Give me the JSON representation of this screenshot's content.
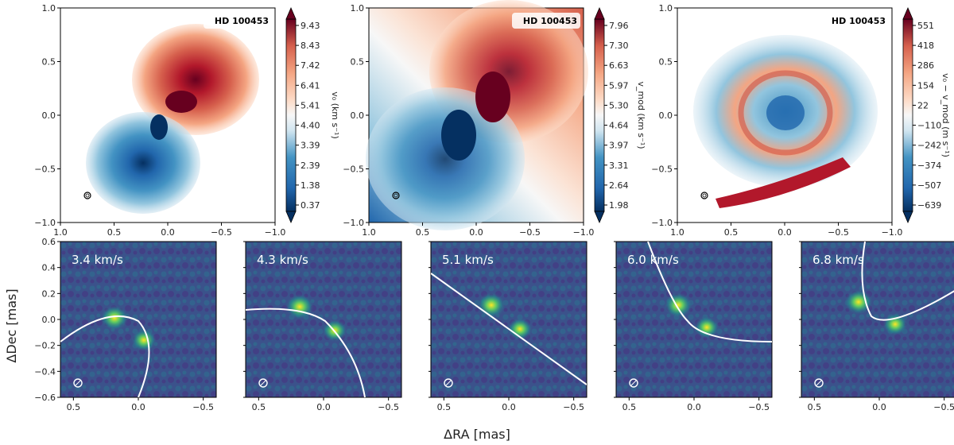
{
  "figure": {
    "xlabel": "ΔRA [mas]",
    "ylabel": "ΔDec [mas]"
  },
  "colors": {
    "diverging_low": "#053061",
    "diverging_mid": "#f7f7f7",
    "diverging_high": "#67001f",
    "viridis_low": "#440154",
    "viridis_mid": "#21918c",
    "viridis_high": "#fde725",
    "fit_curve": "#ffffff"
  },
  "chart_data": [
    {
      "type": "heatmap",
      "panel": "top-left",
      "badge": "HD 100453",
      "xlim": [
        1.0,
        -1.0
      ],
      "ylim": [
        -1.0,
        1.0
      ],
      "xticks": [
        "1.0",
        "0.5",
        "0.0",
        "−0.5",
        "−1.0"
      ],
      "yticks": [
        "1.0",
        "0.5",
        "0.0",
        "−0.5",
        "−1.0"
      ],
      "colorbar": {
        "label": "v₀ (km s⁻¹)",
        "ticks": [
          "9.43",
          "8.43",
          "7.42",
          "6.41",
          "5.41",
          "4.40",
          "3.39",
          "2.39",
          "1.38",
          "0.37"
        ],
        "range": [
          0.37,
          9.43
        ],
        "cmap": "RdBu_r",
        "extend": "both"
      },
      "grid": false
    },
    {
      "type": "heatmap",
      "panel": "top-middle",
      "badge": "HD 100453",
      "xlim": [
        1.0,
        -1.0
      ],
      "ylim": [
        -1.0,
        1.0
      ],
      "xticks": [
        "1.0",
        "0.5",
        "0.0",
        "−0.5",
        "−1.0"
      ],
      "yticks": [
        "1.0",
        "0.5",
        "0.0",
        "−0.5",
        "−1.0"
      ],
      "colorbar": {
        "label": "v_mod (km s⁻¹)",
        "ticks": [
          "7.96",
          "7.30",
          "6.63",
          "5.97",
          "5.30",
          "4.64",
          "3.97",
          "3.31",
          "2.64",
          "1.98"
        ],
        "range": [
          1.98,
          7.96
        ],
        "cmap": "RdBu_r",
        "extend": "both"
      },
      "grid": false
    },
    {
      "type": "heatmap",
      "panel": "top-right",
      "badge": "HD 100453",
      "xlim": [
        1.0,
        -1.0
      ],
      "ylim": [
        -1.0,
        1.0
      ],
      "xticks": [
        "1.0",
        "0.5",
        "0.0",
        "−0.5",
        "−1.0"
      ],
      "yticks": [
        "1.0",
        "0.5",
        "0.0",
        "−0.5",
        "−1.0"
      ],
      "colorbar": {
        "label": "v₀ − v_mod (m s⁻¹)",
        "ticks": [
          "551",
          "418",
          "286",
          "154",
          "22",
          "−110",
          "−242",
          "−374",
          "−507",
          "−639"
        ],
        "range": [
          -639,
          551
        ],
        "cmap": "RdBu_r",
        "extend": "both"
      },
      "grid": false
    },
    {
      "type": "heatmap",
      "panel": "bottom-1",
      "label": "3.4 km/s",
      "xlim": [
        0.6,
        -0.6
      ],
      "ylim": [
        -0.6,
        0.6
      ],
      "xticks": [
        "0.5",
        "0.0",
        "−0.5"
      ],
      "yticks": [
        "0.6",
        "0.4",
        "0.2",
        "0.0",
        "−0.2",
        "−0.4",
        "−0.6"
      ],
      "cmap": "viridis"
    },
    {
      "type": "heatmap",
      "panel": "bottom-2",
      "label": "4.3 km/s",
      "xlim": [
        0.6,
        -0.6
      ],
      "ylim": [
        -0.6,
        0.6
      ],
      "xticks": [
        "0.5",
        "0.0",
        "−0.5"
      ],
      "cmap": "viridis"
    },
    {
      "type": "heatmap",
      "panel": "bottom-3",
      "label": "5.1 km/s",
      "xlim": [
        0.6,
        -0.6
      ],
      "ylim": [
        -0.6,
        0.6
      ],
      "xticks": [
        "0.5",
        "0.0",
        "−0.5"
      ],
      "cmap": "viridis"
    },
    {
      "type": "heatmap",
      "panel": "bottom-4",
      "label": "6.0 km/s",
      "xlim": [
        0.6,
        -0.6
      ],
      "ylim": [
        -0.6,
        0.6
      ],
      "xticks": [
        "0.5",
        "0.0",
        "−0.5"
      ],
      "cmap": "viridis"
    },
    {
      "type": "heatmap",
      "panel": "bottom-5",
      "label": "6.8 km/s",
      "xlim": [
        0.6,
        -0.6
      ],
      "ylim": [
        -0.6,
        0.6
      ],
      "xticks": [
        "0.5",
        "0.0",
        "−0.5"
      ],
      "cmap": "viridis"
    }
  ]
}
